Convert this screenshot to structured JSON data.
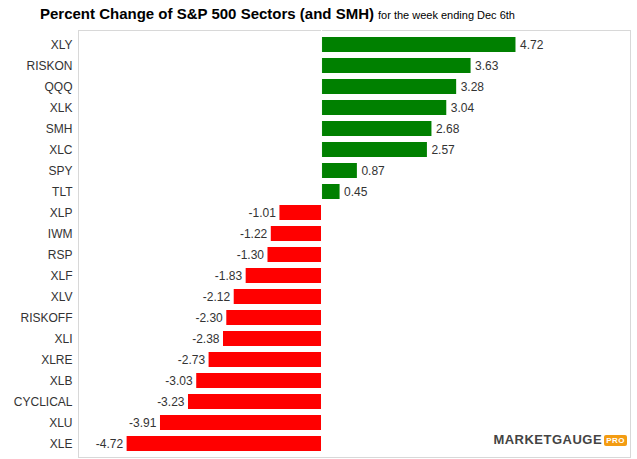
{
  "chart_data": {
    "type": "bar",
    "orientation": "horizontal",
    "title": "Percent Change of S&P 500 Sectors (and SMH)",
    "subtitle": "for the week ending Dec 6th",
    "categories": [
      "XLY",
      "RISKON",
      "QQQ",
      "XLK",
      "SMH",
      "XLC",
      "SPY",
      "TLT",
      "XLP",
      "IWM",
      "RSP",
      "XLF",
      "XLV",
      "RISKOFF",
      "XLI",
      "XLRE",
      "XLB",
      "CYCLICAL",
      "XLU",
      "XLE"
    ],
    "values": [
      4.72,
      3.63,
      3.28,
      3.04,
      2.68,
      2.57,
      0.87,
      0.45,
      -1.01,
      -1.22,
      -1.3,
      -1.83,
      -2.12,
      -2.3,
      -2.38,
      -2.73,
      -3.03,
      -3.23,
      -3.91,
      -4.72
    ],
    "value_labels": [
      "4.72",
      "3.63",
      "3.28",
      "3.04",
      "2.68",
      "2.57",
      "0.87",
      "0.45",
      "-1.01",
      "-1.22",
      "-1.30",
      "-1.83",
      "-2.12",
      "-2.30",
      "-2.38",
      "-2.73",
      "-3.03",
      "-3.23",
      "-3.91",
      "-4.72"
    ],
    "colors": [
      "#008000",
      "#008000",
      "#008000",
      "#008000",
      "#008000",
      "#008000",
      "#008000",
      "#008000",
      "#ff0000",
      "#ff0000",
      "#ff0000",
      "#ff0000",
      "#ff0000",
      "#ff0000",
      "#ff0000",
      "#ff0000",
      "#ff0000",
      "#ff0000",
      "#ff0000",
      "#ff0000"
    ],
    "xlim": [
      -5.9,
      7.5
    ],
    "xticks": [],
    "grid": false,
    "data_labels": true,
    "tick_labels": "y",
    "annotations": [
      "MARKETGAUGE",
      "PRO"
    ]
  }
}
